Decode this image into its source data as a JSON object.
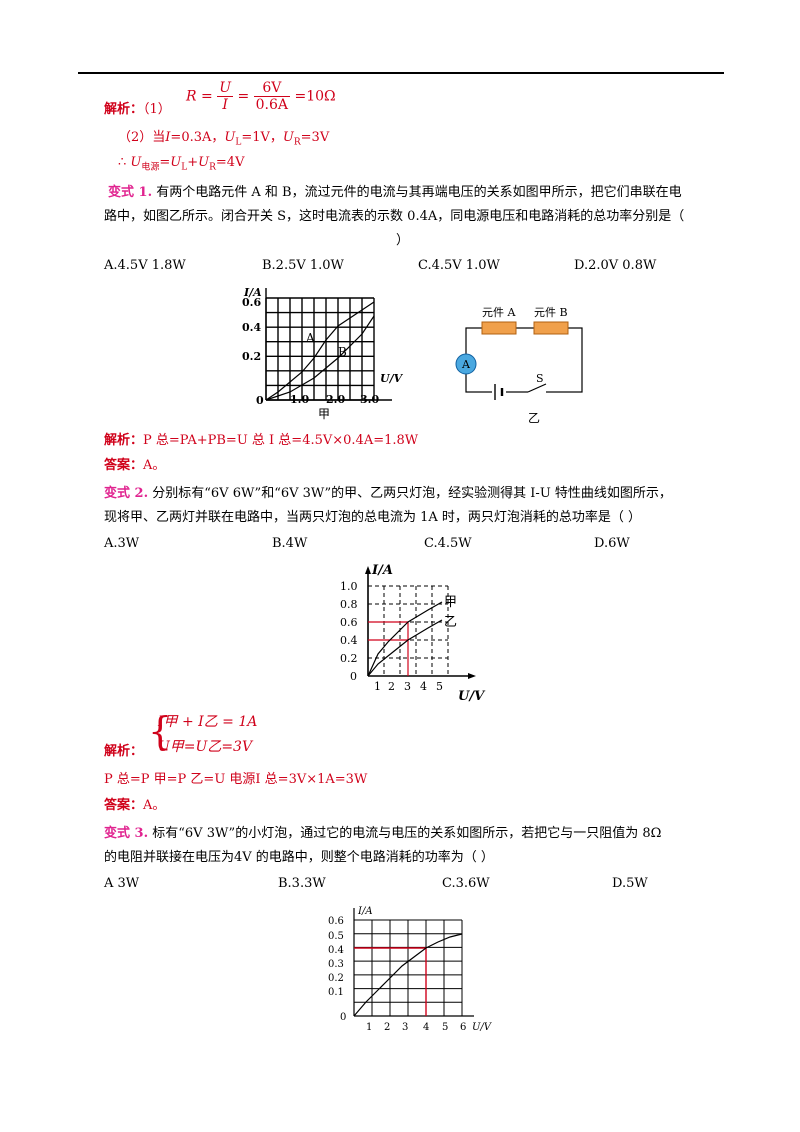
{
  "formula_r": {
    "lhs": "R =",
    "num1": "U",
    "den1": "I",
    "eq": "=",
    "num2": "6V",
    "den2": "0.6A",
    "result": "=10Ω"
  },
  "sol1": {
    "label": "解析：",
    "part1": "（1）"
  },
  "sol1_line2": {
    "a": "（2）当",
    "b": "I",
    "c": "=0.3A，",
    "d": "U",
    "e": "L",
    "f": "=1V，",
    "g": "U",
    "h": "R",
    "i": "=3V"
  },
  "sol1_line3": {
    "a": "∴ ",
    "b": "U",
    "c": "电源",
    "d": "=",
    "e": "U",
    "f": "L",
    "g": "+",
    "h": "U",
    "i": "R",
    "j": "=4V"
  },
  "q1": {
    "tag": "变式 1.",
    "text1": "有两个电路元件 A 和 B，流过元件的电流与其再端电压的关系如图甲所示，把它们串联在电",
    "text2": "路中，如图乙所示。闭合开关 S，这时电流表的示数 0.4A，同电源电压和电路消耗的总功率分别是（",
    "text3": "）",
    "options": [
      "A.4.5V    1.8W",
      "B.2.5V    1.0W",
      "C.4.5V    1.0W",
      "D.2.0V    0.8W"
    ],
    "sol_label": "解析：",
    "sol_text": "P 总=PA+PB=U 总 I 总=4.5V×0.4A=1.8W",
    "ans_label": "答案：",
    "ans": "A。"
  },
  "fig1": {
    "ylabel": "I/A",
    "xlabel": "U/V",
    "yticks": [
      "0.6",
      "0.4",
      "0.2",
      "0"
    ],
    "xticks": [
      "1.0",
      "2.0",
      "3.0"
    ],
    "curve_a": "A",
    "curve_b": "B",
    "caption": "甲"
  },
  "circuit": {
    "elemA": "元件 A",
    "elemB": "元件 B",
    "ammeter": "A",
    "switch": "S",
    "caption": "乙"
  },
  "q2": {
    "tag": "变式 2.",
    "text1": "分别标有“6V  6W”和“6V  3W”的甲、乙两只灯泡，经实验测得其 I-U 特性曲线如图所示，",
    "text2": "现将甲、乙两灯并联在电路中，当两只灯泡的总电流为 1A 时，两只灯泡消耗的总功率是（        ）",
    "options": [
      "A.3W",
      "B.4W",
      "C.4.5W",
      "D.6W"
    ],
    "sol_label": "解析：",
    "eq1": "I甲 + I乙 = 1A",
    "eq2": "U甲=U乙=3V",
    "sol_text": "P 总=P 甲=P 乙=U 电源I 总=3V×1A=3W",
    "ans_label": "答案：",
    "ans": "A。"
  },
  "fig2": {
    "ylabel": "I/A",
    "xlabel": "U/V",
    "yticks": [
      "1.0",
      "0.8",
      "0.6",
      "0.4",
      "0.2",
      "0"
    ],
    "xticks": [
      "1",
      "2",
      "3",
      "4",
      "5"
    ],
    "label_jia": "甲",
    "label_yi": "乙"
  },
  "q3": {
    "tag": "变式 3.",
    "text1": "标有“6V  3W”的小灯泡，通过它的电流与电压的关系如图所示，若把它与一只阻值为 8Ω",
    "text2": "的电阻并联接在电压为4V 的电路中，则整个电路消耗的功率为（        ）",
    "options": [
      "A 3W",
      "B.3.3W",
      "C.3.6W",
      "D.5W"
    ]
  },
  "fig3": {
    "ylabel": "I/A",
    "xlabel": "U/V",
    "yticks": [
      "0.6",
      "0.5",
      "0.4",
      "0.3",
      "0.2",
      "0.1",
      "0"
    ],
    "xticks": [
      "1",
      "2",
      "3",
      "4",
      "5",
      "6"
    ]
  },
  "colors": {
    "red": "#d0021b",
    "pink": "#e0238f"
  }
}
